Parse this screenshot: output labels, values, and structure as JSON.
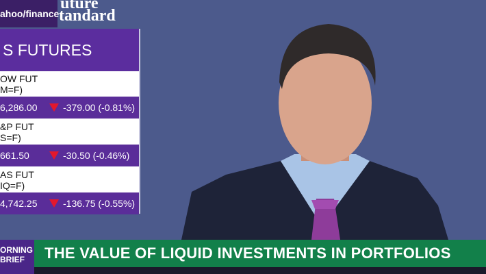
{
  "brand": "ahoo/finance",
  "show_logo": [
    "uture",
    "tandard"
  ],
  "panel": {
    "title": "S FUTURES",
    "rows": [
      {
        "name": "OW FUT",
        "ticker": "M=F)",
        "price": "6,286.00",
        "change": "-379.00 (-0.81%)"
      },
      {
        "name": "&P FUT",
        "ticker": "S=F)",
        "price": "661.50",
        "change": "-30.50 (-0.46%)"
      },
      {
        "name": "AS FUT",
        "ticker": "IQ=F)",
        "price": "4,742.25",
        "change": "-136.75 (-0.55%)"
      }
    ]
  },
  "badge": [
    "ORNING",
    "BRIEF"
  ],
  "headline": "THE VALUE OF LIQUID INVESTMENTS IN PORTFOLIOS"
}
